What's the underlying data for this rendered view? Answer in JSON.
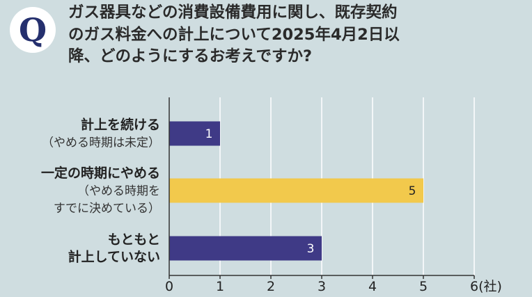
{
  "question": {
    "badge": "Q",
    "lines": [
      "ガス器具などの消費設備費用に関し、既存契約",
      "のガス料金への計上について2025年4月2日以",
      "降、どのようにするお考えですか?"
    ]
  },
  "chart_data": {
    "type": "bar",
    "orientation": "horizontal",
    "categories": [
      {
        "main": [
          "計上を続ける"
        ],
        "sub": [
          "（やめる時期は未定）"
        ]
      },
      {
        "main": [
          "一定の時期にやめる"
        ],
        "sub": [
          "（やめる時期を",
          "すでに決めている）"
        ]
      },
      {
        "main": [
          "もともと",
          "計上していない"
        ],
        "sub": []
      }
    ],
    "values": [
      1,
      5,
      3
    ],
    "data_labels": [
      "1",
      "5",
      "3"
    ],
    "bar_colors": [
      "#3f3a86",
      "#f2c94c",
      "#3f3a86"
    ],
    "data_label_colors": [
      "#ffffff",
      "#222222",
      "#ffffff"
    ],
    "xlim": [
      0,
      6
    ],
    "xticks": [
      0,
      1,
      2,
      3,
      4,
      5,
      6
    ],
    "xtick_labels": [
      "0",
      "1",
      "2",
      "3",
      "4",
      "5",
      "6(社)"
    ],
    "grid": "vertical",
    "colors": {
      "background": "#cfdde0",
      "axis": "#333333",
      "grid": "#ffffff",
      "badge_text": "#25306e"
    }
  }
}
